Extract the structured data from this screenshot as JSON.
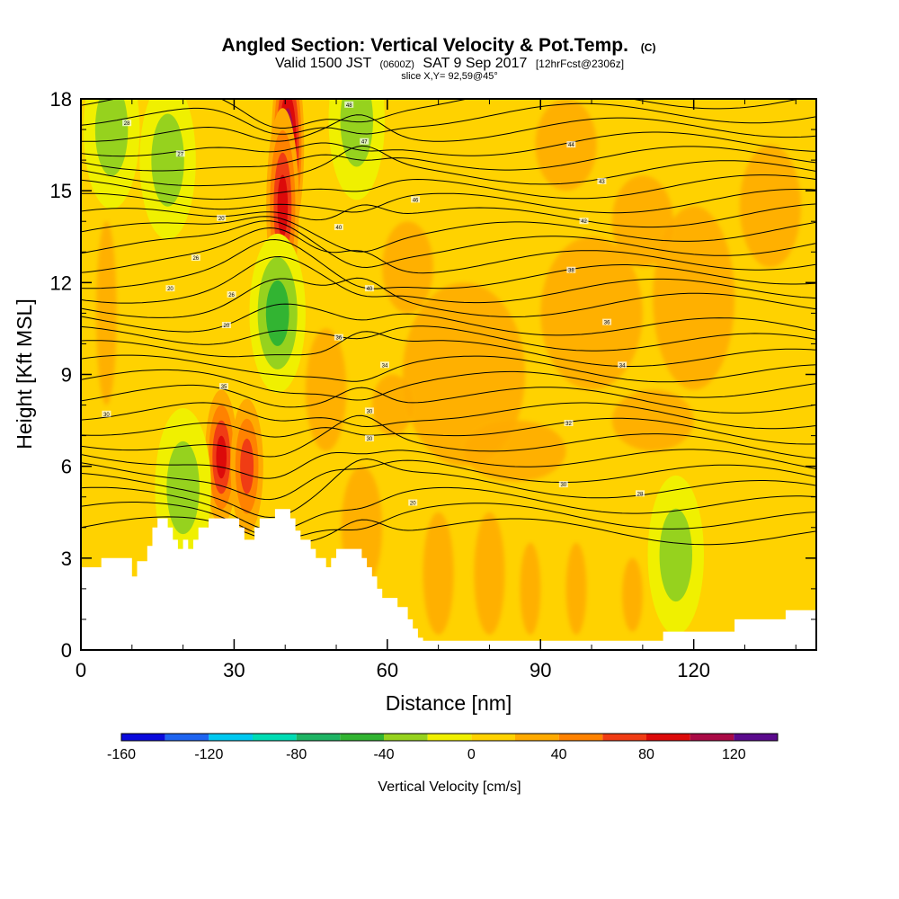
{
  "chart_data": {
    "type": "heatmap",
    "title": "Angled Section: Vertical Velocity & Pot.Temp.",
    "title_unit": "(C)",
    "subtitle": {
      "valid_prefix": "Valid 1500 JST",
      "valid_utc": "(0600Z)",
      "valid_date": "SAT 9 Sep 2017",
      "forecast": "[12hrFcst@2306z]"
    },
    "slice_label": "slice X,Y= 92,59@45°",
    "xlabel": "Distance [nm]",
    "ylabel": "Height [Kft MSL]",
    "xlim": [
      0,
      144
    ],
    "ylim": [
      0,
      18
    ],
    "x_ticks": [
      0,
      30,
      60,
      90,
      120
    ],
    "y_ticks": [
      0,
      3,
      6,
      9,
      12,
      15,
      18
    ],
    "background_level": "0 to 20 cm/s (yellow)",
    "colorbar": {
      "title": "Vertical Velocity [cm/s]",
      "bounds": [
        -160,
        -140,
        -120,
        -100,
        -80,
        -60,
        -40,
        -20,
        0,
        20,
        40,
        60,
        80,
        100,
        120,
        140
      ],
      "colors": [
        "#0a0adc",
        "#1e64f0",
        "#00c8f0",
        "#00dcb4",
        "#1eb464",
        "#32b432",
        "#96d21e",
        "#f0f000",
        "#ffd200",
        "#ffaa00",
        "#ff8200",
        "#f03c14",
        "#dc0a0a",
        "#aa0a46",
        "#5a0a8c"
      ],
      "labels": [
        "-160",
        "-120",
        "-80",
        "-40",
        "0",
        "40",
        "80",
        "120"
      ]
    },
    "terrain": {
      "description": "terrain height along section (Kft MSL)",
      "points": [
        [
          0,
          2.7
        ],
        [
          4,
          2.7
        ],
        [
          4,
          3
        ],
        [
          10,
          3
        ],
        [
          10,
          2.4
        ],
        [
          11,
          2.4
        ],
        [
          11,
          2.9
        ],
        [
          13,
          2.9
        ],
        [
          13,
          3.4
        ],
        [
          14,
          3.4
        ],
        [
          14,
          4
        ],
        [
          15,
          4
        ],
        [
          15,
          4.3
        ],
        [
          17,
          4.3
        ],
        [
          17,
          4
        ],
        [
          18,
          4
        ],
        [
          18,
          3.6
        ],
        [
          19,
          3.6
        ],
        [
          19,
          3.3
        ],
        [
          20,
          3.3
        ],
        [
          20,
          3.6
        ],
        [
          21,
          3.6
        ],
        [
          21,
          3.3
        ],
        [
          22,
          3.3
        ],
        [
          22,
          3.6
        ],
        [
          23,
          3.6
        ],
        [
          23,
          4
        ],
        [
          25,
          4
        ],
        [
          25,
          4.3
        ],
        [
          31,
          4.3
        ],
        [
          31,
          4
        ],
        [
          32,
          4
        ],
        [
          32,
          3.6
        ],
        [
          34,
          3.6
        ],
        [
          34,
          4
        ],
        [
          35,
          4
        ],
        [
          35,
          4.3
        ],
        [
          38,
          4.3
        ],
        [
          38,
          4.6
        ],
        [
          41,
          4.6
        ],
        [
          41,
          4.3
        ],
        [
          42,
          4.3
        ],
        [
          42,
          3.9
        ],
        [
          43,
          3.9
        ],
        [
          43,
          3.6
        ],
        [
          45,
          3.6
        ],
        [
          45,
          3.3
        ],
        [
          46,
          3.3
        ],
        [
          46,
          3
        ],
        [
          48,
          3
        ],
        [
          48,
          2.7
        ],
        [
          49,
          2.7
        ],
        [
          49,
          3
        ],
        [
          50,
          3
        ],
        [
          50,
          3.3
        ],
        [
          55,
          3.3
        ],
        [
          55,
          3
        ],
        [
          56,
          3
        ],
        [
          56,
          2.7
        ],
        [
          57,
          2.7
        ],
        [
          57,
          2.4
        ],
        [
          58,
          2.4
        ],
        [
          58,
          2
        ],
        [
          59,
          2
        ],
        [
          59,
          1.7
        ],
        [
          62,
          1.7
        ],
        [
          62,
          1.4
        ],
        [
          64,
          1.4
        ],
        [
          64,
          1
        ],
        [
          65,
          1
        ],
        [
          65,
          0.7
        ],
        [
          66,
          0.7
        ],
        [
          66,
          0.4
        ],
        [
          67,
          0.4
        ],
        [
          67,
          0.3
        ],
        [
          114,
          0.3
        ],
        [
          114,
          0.6
        ],
        [
          128,
          0.6
        ],
        [
          128,
          1
        ],
        [
          138,
          1
        ],
        [
          138,
          1.3
        ],
        [
          144,
          1.3
        ]
      ]
    },
    "updraft_cores": [
      {
        "x": 27.5,
        "z": 6.3,
        "w": 90
      },
      {
        "x": 32.5,
        "z": 6.0,
        "w": 80
      },
      {
        "x": 40.5,
        "z": 16.5,
        "w": 130
      },
      {
        "x": 39.5,
        "z": 14.5,
        "w": 90
      }
    ],
    "downdraft_cores": [
      {
        "x": 38.5,
        "z": 11.0,
        "w": -60
      },
      {
        "x": 20.0,
        "z": 5.3,
        "w": -40
      },
      {
        "x": 54.0,
        "z": 17.3,
        "w": -40
      },
      {
        "x": 17.0,
        "z": 16.0,
        "w": -40
      },
      {
        "x": 6.0,
        "z": 17.0,
        "w": -30
      },
      {
        "x": 116.5,
        "z": 3.1,
        "w": -30
      }
    ],
    "contour_labels": [
      {
        "x": 9,
        "z": 17.2,
        "text": "28"
      },
      {
        "x": 19.5,
        "z": 16.2,
        "text": "27"
      },
      {
        "x": 27.5,
        "z": 14.1,
        "text": "20"
      },
      {
        "x": 22.5,
        "z": 12.8,
        "text": "26"
      },
      {
        "x": 17.5,
        "z": 11.8,
        "text": "20"
      },
      {
        "x": 29.5,
        "z": 11.6,
        "text": "26"
      },
      {
        "x": 28.5,
        "z": 10.6,
        "text": "20"
      },
      {
        "x": 28.0,
        "z": 8.6,
        "text": "35"
      },
      {
        "x": 5.0,
        "z": 7.7,
        "text": "30"
      },
      {
        "x": 52.5,
        "z": 17.8,
        "text": "48"
      },
      {
        "x": 55.5,
        "z": 16.6,
        "text": "47"
      },
      {
        "x": 65.5,
        "z": 14.7,
        "text": "46"
      },
      {
        "x": 50.5,
        "z": 13.8,
        "text": "40"
      },
      {
        "x": 56.5,
        "z": 11.8,
        "text": "40"
      },
      {
        "x": 50.5,
        "z": 10.2,
        "text": "36"
      },
      {
        "x": 59.5,
        "z": 9.3,
        "text": "34"
      },
      {
        "x": 56.5,
        "z": 7.8,
        "text": "30"
      },
      {
        "x": 56.5,
        "z": 6.9,
        "text": "30"
      },
      {
        "x": 65.0,
        "z": 4.8,
        "text": "20"
      },
      {
        "x": 96.0,
        "z": 16.5,
        "text": "44"
      },
      {
        "x": 102.0,
        "z": 15.3,
        "text": "43"
      },
      {
        "x": 98.5,
        "z": 14.0,
        "text": "42"
      },
      {
        "x": 96.0,
        "z": 12.4,
        "text": "38"
      },
      {
        "x": 103.0,
        "z": 10.7,
        "text": "36"
      },
      {
        "x": 106.0,
        "z": 9.3,
        "text": "34"
      },
      {
        "x": 95.5,
        "z": 7.4,
        "text": "32"
      },
      {
        "x": 94.5,
        "z": 5.4,
        "text": "30"
      },
      {
        "x": 109.5,
        "z": 5.1,
        "text": "28"
      }
    ]
  }
}
